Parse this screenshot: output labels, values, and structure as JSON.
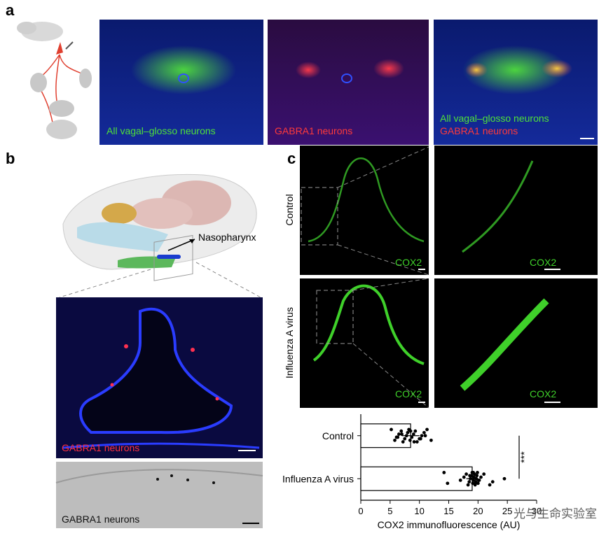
{
  "panel_labels": [
    "a",
    "b",
    "c"
  ],
  "panel_a": {
    "captions": [
      "All vagal–glosso neurons",
      "GABRA1 neurons",
      "All vagal–glosso neurons",
      "GABRA1 neurons"
    ]
  },
  "panel_b": {
    "callout": "Nasopharynx",
    "captions": [
      "GABRA1 neurons",
      "GABRA1 neurons"
    ]
  },
  "panel_c": {
    "row_labels": [
      "Control",
      "Influenza A virus"
    ],
    "stain_labels": [
      "COX2",
      "COX2",
      "COX2",
      "COX2"
    ]
  },
  "watermark": "光与生命实验室",
  "chart_data": {
    "type": "bar",
    "orientation": "horizontal",
    "categories": [
      "Control",
      "Influenza A virus"
    ],
    "values": [
      8.5,
      19
    ],
    "errors": [
      1.5,
      1
    ],
    "color": "#ffffff",
    "points": [
      [
        5.2,
        5.8,
        6.1,
        6.5,
        6.9,
        7.2,
        7.5,
        7.8,
        8.0,
        8.2,
        8.4,
        8.7,
        9.0,
        9.3,
        9.6,
        10.0,
        10.4,
        10.8,
        11.3,
        12.0,
        6.3,
        7.0,
        8.5,
        9.1,
        10.2,
        11.0
      ],
      [
        14.2,
        14.8,
        17.0,
        17.6,
        18.0,
        18.3,
        18.5,
        18.7,
        18.9,
        19.0,
        19.1,
        19.2,
        19.3,
        19.4,
        19.5,
        19.6,
        19.7,
        19.8,
        19.9,
        20.0,
        20.2,
        20.5,
        21.0,
        22.0,
        22.5,
        24.5,
        18.6,
        19.2,
        19.6,
        20.1
      ]
    ],
    "xlim": [
      0,
      30
    ],
    "xticks": [
      0,
      5,
      10,
      15,
      20,
      25,
      30
    ],
    "xlabel": "COX2 immunofluorescence (AU)",
    "annotation": "***"
  }
}
